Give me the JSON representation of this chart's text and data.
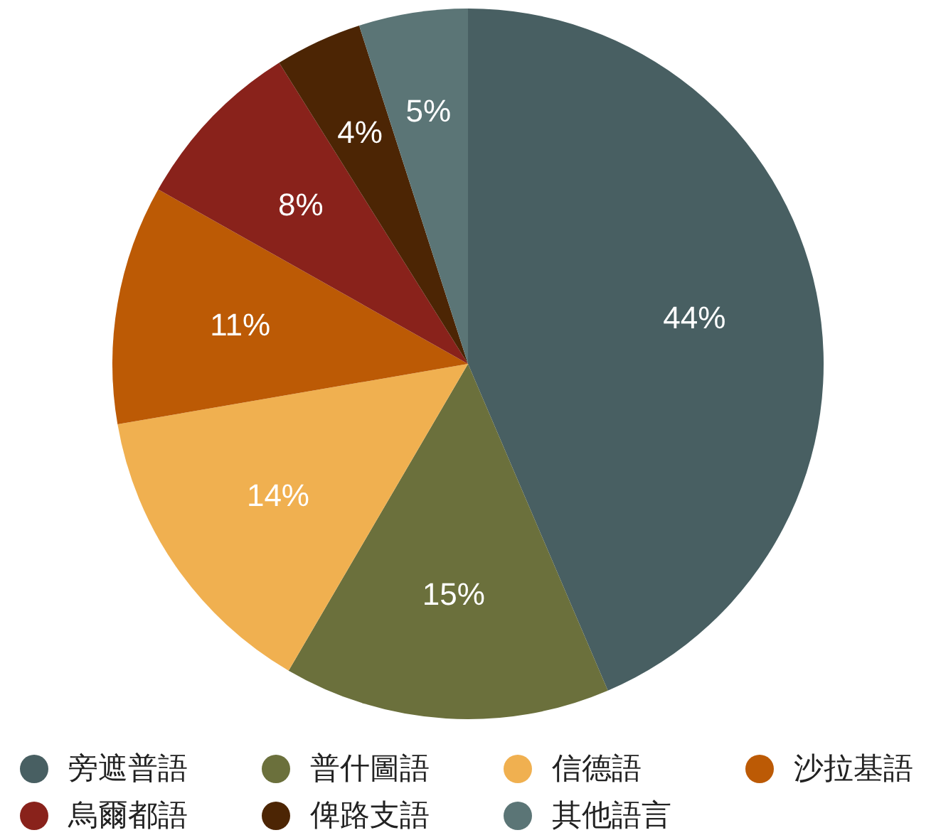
{
  "chart_data": {
    "type": "pie",
    "categories": [
      "旁遮普語",
      "普什圖語",
      "信德語",
      "沙拉基語",
      "烏爾都語",
      "俾路支語",
      "其他語言"
    ],
    "values": [
      44,
      15,
      14,
      11,
      8,
      4,
      5
    ],
    "value_labels": [
      "44%",
      "15%",
      "14%",
      "11%",
      "8%",
      "4%",
      "5%"
    ],
    "colors": [
      "#485f62",
      "#6b703c",
      "#f0b050",
      "#bc5a05",
      "#89221b",
      "#4c2504",
      "#5b7576"
    ],
    "legend": "bottom"
  }
}
